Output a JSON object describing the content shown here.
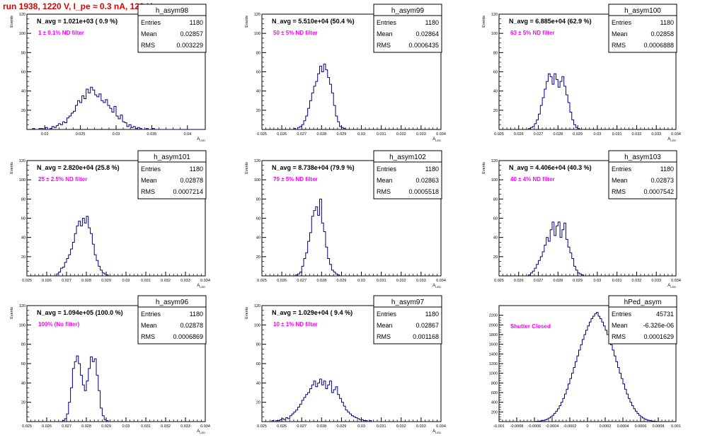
{
  "header": {
    "title": "run 1938,  1220 V, I_pe ≈ 0.3 nA, 120 Hz"
  },
  "colors": {
    "histogram": "#00007f",
    "filter_label": "#ff00ff",
    "title": "#e00000",
    "text": "#000000"
  },
  "chart_data": [
    {
      "type": "bar",
      "name": "h_asym98",
      "n_avg": "N_avg = 1.021e+03 ( 0.9 %)",
      "filter_label": "1 ± 0.1% ND filter",
      "stats": {
        "entries": "1180",
        "mean": "0.02857",
        "rms": "0.003229"
      },
      "ylabel": "Events",
      "xlabel": "A_{LED}",
      "xlim": [
        0.0175,
        0.0425
      ],
      "ylim": [
        0,
        120
      ],
      "xticks": [
        0.02,
        0.025,
        0.03,
        0.035,
        0.04
      ],
      "xtick_labels": [
        "0.02",
        "0.025",
        "0.03",
        "0.035",
        "0.04"
      ],
      "yticks": [
        20,
        40,
        60,
        80,
        100,
        120
      ],
      "bins": {
        "x0": 0.0183,
        "width": 0.0003,
        "counts": [
          1,
          0,
          0,
          1,
          1,
          0,
          2,
          0,
          1,
          3,
          2,
          4,
          6,
          5,
          8,
          7,
          12,
          14,
          17,
          19,
          25,
          30,
          28,
          35,
          32,
          42,
          38,
          44,
          41,
          36,
          34,
          37,
          30,
          28,
          31,
          25,
          22,
          18,
          24,
          14,
          11,
          15,
          8,
          7,
          3,
          5,
          2,
          3,
          1,
          2,
          1,
          0,
          0,
          1,
          0,
          0,
          1,
          0,
          0,
          0,
          0,
          0,
          0,
          0,
          0,
          0,
          0,
          0,
          0,
          0,
          0,
          0,
          0,
          0,
          0,
          0,
          0,
          0,
          0,
          0
        ]
      }
    },
    {
      "type": "bar",
      "name": "h_asym99",
      "n_avg": "N_avg = 5.510e+04 (50.4 %)",
      "filter_label": "50 ± 5% ND filter",
      "stats": {
        "entries": "1180",
        "mean": "0.02864",
        "rms": "0.0006435"
      },
      "ylabel": "Events",
      "xlabel": "A_{LED}",
      "xlim": [
        0.025,
        0.034
      ],
      "ylim": [
        0,
        120
      ],
      "xticks": [
        0.025,
        0.026,
        0.027,
        0.028,
        0.029,
        0.03,
        0.031,
        0.032,
        0.033,
        0.034
      ],
      "xtick_labels": [
        "0.025",
        "0.026",
        "0.027",
        "0.028",
        "0.029",
        "0.03",
        "0.031",
        "0.032",
        "0.033",
        "0.034"
      ],
      "yticks": [
        20,
        40,
        60,
        80,
        100,
        120
      ],
      "bins": {
        "x0": 0.0266,
        "width": 0.0001,
        "counts": [
          1,
          0,
          2,
          3,
          5,
          9,
          14,
          22,
          30,
          38,
          45,
          50,
          58,
          66,
          60,
          68,
          62,
          54,
          47,
          38,
          25,
          14,
          8,
          3,
          2,
          1
        ]
      }
    },
    {
      "type": "bar",
      "name": "h_asym100",
      "n_avg": "N_avg = 6.885e+04 (62.9 %)",
      "filter_label": "63 ± 5% ND filter",
      "stats": {
        "entries": "1180",
        "mean": "0.02858",
        "rms": "0.0006888"
      },
      "ylabel": "Events",
      "xlabel": "A_{LED}",
      "xlim": [
        0.025,
        0.034
      ],
      "ylim": [
        0,
        120
      ],
      "xticks": [
        0.025,
        0.026,
        0.027,
        0.028,
        0.029,
        0.03,
        0.031,
        0.032,
        0.033,
        0.034
      ],
      "xtick_labels": [
        "0.025",
        "0.026",
        "0.027",
        "0.028",
        "0.029",
        "0.03",
        "0.031",
        "0.032",
        "0.033",
        "0.034"
      ],
      "yticks": [
        20,
        40,
        60,
        80,
        100,
        120
      ],
      "bins": {
        "x0": 0.0265,
        "width": 0.0001,
        "counts": [
          1,
          2,
          3,
          6,
          10,
          16,
          25,
          33,
          42,
          50,
          58,
          55,
          47,
          58,
          52,
          44,
          50,
          55,
          45,
          36,
          28,
          18,
          10,
          5,
          2,
          1
        ]
      }
    },
    {
      "type": "bar",
      "name": "h_asym101",
      "n_avg": "N_avg = 2.820e+04 (25.8 %)",
      "filter_label": "25 ± 2.5% ND filter",
      "stats": {
        "entries": "1180",
        "mean": "0.02878",
        "rms": "0.0007214"
      },
      "ylabel": "Events",
      "xlabel": "A_{LED}",
      "xlim": [
        0.025,
        0.034
      ],
      "ylim": [
        0,
        120
      ],
      "xticks": [
        0.025,
        0.026,
        0.027,
        0.028,
        0.029,
        0.03,
        0.031,
        0.032,
        0.033,
        0.034
      ],
      "xtick_labels": [
        "0.025",
        "0.026",
        "0.027",
        "0.028",
        "0.029",
        "0.03",
        "0.031",
        "0.032",
        "0.033",
        "0.034"
      ],
      "yticks": [
        20,
        40,
        60,
        80,
        100,
        120
      ],
      "bins": {
        "x0": 0.0265,
        "width": 0.0001,
        "counts": [
          2,
          4,
          8,
          9,
          14,
          18,
          22,
          28,
          35,
          44,
          52,
          57,
          52,
          60,
          55,
          62,
          50,
          44,
          33,
          22,
          16,
          10,
          6,
          3,
          2,
          1
        ]
      }
    },
    {
      "type": "bar",
      "name": "h_asym102",
      "n_avg": "N_avg = 8.738e+04 (79.9 %)",
      "filter_label": "79 ± 5% ND filter",
      "stats": {
        "entries": "1180",
        "mean": "0.02863",
        "rms": "0.0005518"
      },
      "ylabel": "Events",
      "xlabel": "A_{LED}",
      "xlim": [
        0.025,
        0.034
      ],
      "ylim": [
        0,
        120
      ],
      "xticks": [
        0.025,
        0.026,
        0.027,
        0.028,
        0.029,
        0.03,
        0.031,
        0.032,
        0.033,
        0.034
      ],
      "xtick_labels": [
        "0.025",
        "0.026",
        "0.027",
        "0.028",
        "0.029",
        "0.03",
        "0.031",
        "0.032",
        "0.033",
        "0.034"
      ],
      "yticks": [
        20,
        40,
        60,
        80,
        100,
        120
      ],
      "bins": {
        "x0": 0.0267,
        "width": 0.0001,
        "counts": [
          1,
          2,
          4,
          10,
          18,
          24,
          36,
          45,
          62,
          68,
          72,
          63,
          80,
          55,
          46,
          30,
          18,
          12,
          6,
          4,
          2,
          1
        ]
      }
    },
    {
      "type": "bar",
      "name": "h_asym103",
      "n_avg": "N_avg = 4.406e+04 (40.3 %)",
      "filter_label": "40 ± 4% ND filter",
      "stats": {
        "entries": "1180",
        "mean": "0.02873",
        "rms": "0.0007542"
      },
      "ylabel": "Events",
      "xlabel": "A_{LED}",
      "xlim": [
        0.025,
        0.034
      ],
      "ylim": [
        0,
        120
      ],
      "xticks": [
        0.025,
        0.026,
        0.027,
        0.028,
        0.029,
        0.03,
        0.031,
        0.032,
        0.033,
        0.034
      ],
      "xtick_labels": [
        "0.025",
        "0.026",
        "0.027",
        "0.028",
        "0.029",
        "0.03",
        "0.031",
        "0.032",
        "0.033",
        "0.034"
      ],
      "yticks": [
        20,
        40,
        60,
        80,
        100,
        120
      ],
      "bins": {
        "x0": 0.0265,
        "width": 0.0001,
        "counts": [
          1,
          3,
          5,
          8,
          12,
          16,
          20,
          25,
          32,
          40,
          36,
          48,
          56,
          42,
          52,
          56,
          40,
          48,
          55,
          38,
          30,
          24,
          18,
          10,
          6,
          3,
          2,
          1
        ]
      }
    },
    {
      "type": "bar",
      "name": "h_asym96",
      "n_avg": "N_avg = 1.094e+05 (100.0 %)",
      "filter_label": "100% (No filter)",
      "stats": {
        "entries": "1180",
        "mean": "0.02878",
        "rms": "0.0006869"
      },
      "ylabel": "Events",
      "xlabel": "A_{LED}",
      "xlim": [
        0.025,
        0.034
      ],
      "ylim": [
        0,
        120
      ],
      "xticks": [
        0.025,
        0.026,
        0.027,
        0.028,
        0.029,
        0.03,
        0.031,
        0.032,
        0.033,
        0.034
      ],
      "xtick_labels": [
        "0.025",
        "0.026",
        "0.027",
        "0.028",
        "0.029",
        "0.03",
        "0.031",
        "0.032",
        "0.033",
        "0.034"
      ],
      "yticks": [
        20,
        40,
        60,
        80,
        100,
        120
      ],
      "bins": {
        "x0": 0.0268,
        "width": 0.0001,
        "counts": [
          1,
          3,
          8,
          20,
          35,
          55,
          62,
          68,
          60,
          48,
          38,
          32,
          42,
          55,
          67,
          62,
          65,
          48,
          32,
          14,
          6,
          2,
          1
        ]
      }
    },
    {
      "type": "bar",
      "name": "h_asym97",
      "n_avg": "N_avg = 1.029e+04 ( 9.4 %)",
      "filter_label": "10 ± 1% ND filter",
      "stats": {
        "entries": "1180",
        "mean": "0.02867",
        "rms": "0.001168"
      },
      "ylabel": "Events",
      "xlabel": "A_{LED}",
      "xlim": [
        0.025,
        0.034
      ],
      "ylim": [
        0,
        120
      ],
      "xticks": [
        0.025,
        0.026,
        0.027,
        0.028,
        0.029,
        0.03,
        0.031,
        0.032,
        0.033,
        0.034
      ],
      "xtick_labels": [
        "0.025",
        "0.026",
        "0.027",
        "0.028",
        "0.029",
        "0.03",
        "0.031",
        "0.032",
        "0.033",
        "0.034"
      ],
      "yticks": [
        20,
        40,
        60,
        80,
        100,
        120
      ],
      "bins": {
        "x0": 0.0255,
        "width": 0.0001,
        "counts": [
          1,
          0,
          1,
          1,
          2,
          3,
          2,
          4,
          3,
          6,
          8,
          10,
          12,
          15,
          18,
          22,
          25,
          28,
          30,
          34,
          38,
          42,
          36,
          40,
          44,
          38,
          42,
          34,
          38,
          42,
          30,
          33,
          36,
          28,
          24,
          20,
          16,
          12,
          10,
          8,
          6,
          5,
          4,
          3,
          2,
          2,
          1,
          1,
          0,
          1,
          0,
          0,
          0,
          0
        ]
      }
    },
    {
      "type": "bar",
      "name": "hPed_asym",
      "n_avg": "",
      "filter_label": "Shutter Closed",
      "stats": {
        "entries": "45731",
        "mean": "-6.326e-06",
        "rms": "0.0001629"
      },
      "ylabel": "",
      "xlabel": "",
      "xlim": [
        -0.001,
        0.001
      ],
      "ylim": [
        0,
        2400
      ],
      "xticks": [
        -0.001,
        -0.0008,
        -0.0006,
        -0.0004,
        -0.0002,
        0,
        0.0002,
        0.0004,
        0.0006,
        0.0008,
        0.001
      ],
      "xtick_labels": [
        "-0.001",
        "-0.0008",
        "-0.0006",
        "-0.0004",
        "-0.0002",
        "0",
        "0.0002",
        "0.0004",
        "0.0006",
        "0.0008",
        "0.001"
      ],
      "yticks": [
        200,
        400,
        600,
        800,
        1000,
        1200,
        1400,
        1600,
        1800,
        2000,
        2200
      ],
      "bins": {
        "x0": -0.0006,
        "width": 2e-05,
        "counts": [
          3,
          5,
          8,
          12,
          20,
          28,
          40,
          55,
          75,
          100,
          130,
          170,
          215,
          265,
          330,
          400,
          480,
          570,
          670,
          780,
          890,
          1000,
          1120,
          1240,
          1360,
          1480,
          1590,
          1700,
          1800,
          1890,
          1980,
          2060,
          2130,
          2180,
          2230,
          2260,
          2180,
          2130,
          2060,
          1980,
          1890,
          1800,
          1700,
          1590,
          1480,
          1360,
          1240,
          1120,
          1000,
          890,
          780,
          670,
          570,
          480,
          400,
          330,
          265,
          215,
          170,
          130,
          100,
          75,
          55,
          40,
          28,
          20,
          12,
          8,
          5,
          3
        ]
      }
    }
  ]
}
